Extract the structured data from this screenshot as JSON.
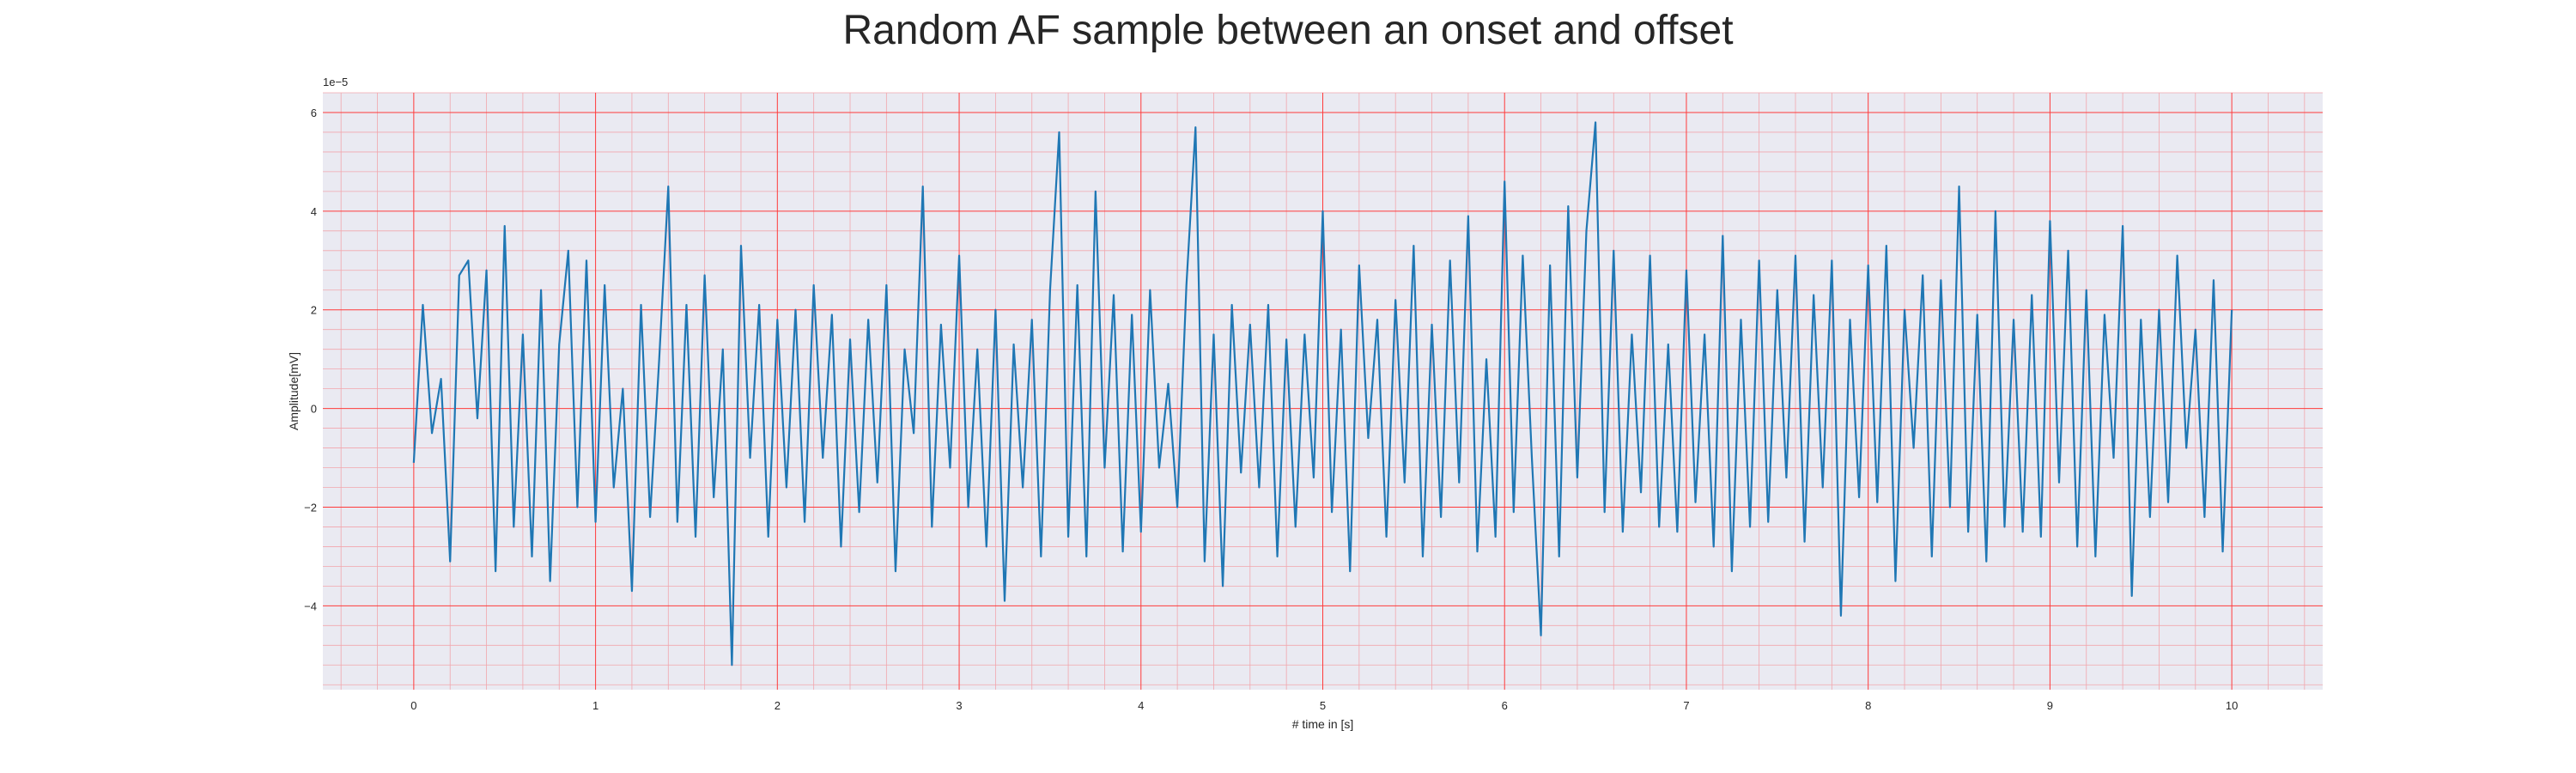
{
  "chart_data": {
    "type": "line",
    "title": "Random AF sample between an onset and offset",
    "xlabel": "# time in [s]",
    "ylabel": "Amplitude[mV]",
    "y_offset_label": "1e−5",
    "xlim": [
      -0.5,
      10.5
    ],
    "ylim": [
      -5.7,
      6.4
    ],
    "x_ticks": [
      0,
      1,
      2,
      3,
      4,
      5,
      6,
      7,
      8,
      9,
      10
    ],
    "x_tick_labels": [
      "0",
      "1",
      "2",
      "3",
      "4",
      "5",
      "6",
      "7",
      "8",
      "9",
      "10"
    ],
    "y_ticks": [
      -4,
      -2,
      0,
      2,
      4,
      6
    ],
    "y_tick_labels": [
      "−4",
      "−2",
      "0",
      "2",
      "4",
      "6"
    ],
    "y_scale": 1e-05,
    "grid": true,
    "minor_grid": true,
    "colors": {
      "line": "#1f77b4",
      "major_grid": "#ff3b3b",
      "minor_grid": "#f2a6ad",
      "plot_bg": "#eaeaf2"
    },
    "series": [
      {
        "x": [
          0,
          0.05,
          0.1,
          0.15,
          0.2,
          0.25,
          0.3,
          0.35,
          0.4,
          0.45,
          0.5,
          0.55,
          0.6,
          0.65,
          0.7,
          0.75,
          0.8,
          0.85,
          0.9,
          0.95,
          1.0,
          1.05,
          1.1,
          1.15,
          1.2,
          1.25,
          1.3,
          1.35,
          1.4,
          1.45,
          1.5,
          1.55,
          1.6,
          1.65,
          1.7,
          1.75,
          1.8,
          1.85,
          1.9,
          1.95,
          2.0,
          2.05,
          2.1,
          2.15,
          2.2,
          2.25,
          2.3,
          2.35,
          2.4,
          2.45,
          2.5,
          2.55,
          2.6,
          2.65,
          2.7,
          2.75,
          2.8,
          2.85,
          2.9,
          2.95,
          3.0,
          3.05,
          3.1,
          3.15,
          3.2,
          3.25,
          3.3,
          3.35,
          3.4,
          3.45,
          3.5,
          3.55,
          3.6,
          3.65,
          3.7,
          3.75,
          3.8,
          3.85,
          3.9,
          3.95,
          4.0,
          4.05,
          4.1,
          4.15,
          4.2,
          4.25,
          4.3,
          4.35,
          4.4,
          4.45,
          4.5,
          4.55,
          4.6,
          4.65,
          4.7,
          4.75,
          4.8,
          4.85,
          4.9,
          4.95,
          5.0,
          5.05,
          5.1,
          5.15,
          5.2,
          5.25,
          5.3,
          5.35,
          5.4,
          5.45,
          5.5,
          5.55,
          5.6,
          5.65,
          5.7,
          5.75,
          5.8,
          5.85,
          5.9,
          5.95,
          6.0,
          6.05,
          6.1,
          6.15,
          6.2,
          6.25,
          6.3,
          6.35,
          6.4,
          6.45,
          6.5,
          6.55,
          6.6,
          6.65,
          6.7,
          6.75,
          6.8,
          6.85,
          6.9,
          6.95,
          7.0,
          7.05,
          7.1,
          7.15,
          7.2,
          7.25,
          7.3,
          7.35,
          7.4,
          7.45,
          7.5,
          7.55,
          7.6,
          7.65,
          7.7,
          7.75,
          7.8,
          7.85,
          7.9,
          7.95,
          8.0,
          8.05,
          8.1,
          8.15,
          8.2,
          8.25,
          8.3,
          8.35,
          8.4,
          8.45,
          8.5,
          8.55,
          8.6,
          8.65,
          8.7,
          8.75,
          8.8,
          8.85,
          8.9,
          8.95,
          9.0,
          9.05,
          9.1,
          9.15,
          9.2,
          9.25,
          9.3,
          9.35,
          9.4,
          9.45,
          9.5,
          9.55,
          9.6,
          9.65,
          9.7,
          9.75,
          9.8,
          9.85,
          9.9,
          9.95,
          10.0
        ],
        "values": [
          -1.1,
          2.1,
          -0.5,
          0.6,
          -3.1,
          2.7,
          3.0,
          -0.2,
          2.8,
          -3.3,
          3.7,
          -2.4,
          1.5,
          -3.0,
          2.4,
          -3.5,
          1.3,
          3.2,
          -2.0,
          3.0,
          -2.3,
          2.5,
          -1.6,
          0.4,
          -3.7,
          2.1,
          -2.2,
          1.0,
          4.5,
          -2.3,
          2.1,
          -2.6,
          2.7,
          -1.8,
          1.2,
          -5.2,
          3.3,
          -1.0,
          2.1,
          -2.6,
          1.8,
          -1.6,
          2.0,
          -2.3,
          2.5,
          -1.0,
          1.9,
          -2.8,
          1.4,
          -2.1,
          1.8,
          -1.5,
          2.5,
          -3.3,
          1.2,
          -0.5,
          4.5,
          -2.4,
          1.7,
          -1.2,
          3.1,
          -2.0,
          1.2,
          -2.8,
          2.0,
          -3.9,
          1.3,
          -1.6,
          1.8,
          -3.0,
          2.4,
          5.6,
          -2.6,
          2.5,
          -3.0,
          4.4,
          -1.2,
          2.3,
          -2.9,
          1.9,
          -2.5,
          2.4,
          -1.2,
          0.5,
          -2.0,
          2.5,
          5.7,
          -3.1,
          1.5,
          -3.6,
          2.1,
          -1.3,
          1.7,
          -1.6,
          2.1,
          -3.0,
          1.4,
          -2.4,
          1.5,
          -1.4,
          4.0,
          -2.1,
          1.6,
          -3.3,
          2.9,
          -0.6,
          1.8,
          -2.6,
          2.2,
          -1.5,
          3.3,
          -3.0,
          1.7,
          -2.2,
          3.0,
          -1.5,
          3.9,
          -2.9,
          1.0,
          -2.6,
          4.6,
          -2.1,
          3.1,
          -1.0,
          -4.6,
          2.9,
          -3.0,
          4.1,
          -1.4,
          3.6,
          5.8,
          -2.1,
          3.2,
          -2.5,
          1.5,
          -1.7,
          3.1,
          -2.4,
          1.3,
          -2.5,
          2.8,
          -1.9,
          1.5,
          -2.8,
          3.5,
          -3.3,
          1.8,
          -2.4,
          3.0,
          -2.3,
          2.4,
          -1.4,
          3.1,
          -2.7,
          2.3,
          -1.6,
          3.0,
          -4.2,
          1.8,
          -1.8,
          2.9,
          -1.9,
          3.3,
          -3.5,
          2.0,
          -0.8,
          2.7,
          -3.0,
          2.6,
          -2.0,
          4.5,
          -2.5,
          1.9,
          -3.1,
          4.0,
          -2.4,
          1.8,
          -2.5,
          2.3,
          -2.6,
          3.8,
          -1.5,
          3.2,
          -2.8,
          2.4,
          -3.0,
          1.9,
          -1.0,
          3.7,
          -3.8,
          1.8,
          -2.2,
          2.0,
          -1.9,
          3.1,
          -0.8,
          1.6,
          -2.2,
          2.6,
          -2.9,
          2.0
        ]
      }
    ]
  }
}
